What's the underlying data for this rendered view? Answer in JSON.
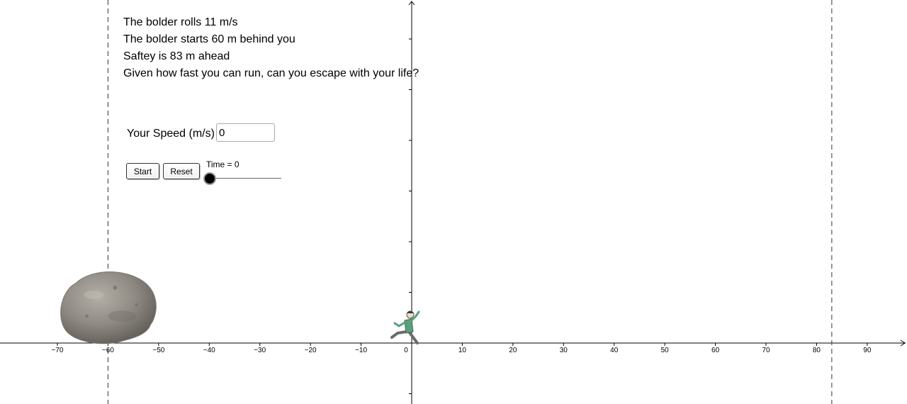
{
  "problem": {
    "lines": [
      "The bolder rolls 11 m/s",
      "The bolder starts 60 m behind you",
      "Saftey is 83 m ahead",
      "Given how fast you can run, can you escape with your life?"
    ]
  },
  "controls": {
    "speed_label": "Your Speed (m/s)",
    "speed_value": "0",
    "start_label": "Start",
    "reset_label": "Reset",
    "time_label": "Time = 0",
    "time_value": 0
  },
  "graph": {
    "x_tick_labels": [
      "−70",
      "−60",
      "−50",
      "−40",
      "−30",
      "−20",
      "−10",
      "0",
      "10",
      "20",
      "30",
      "40",
      "50",
      "60",
      "70",
      "80",
      "90"
    ],
    "x_tick_values": [
      -70,
      -60,
      -50,
      -40,
      -30,
      -20,
      -10,
      0,
      10,
      20,
      30,
      40,
      50,
      60,
      70,
      80,
      90
    ],
    "boulder_start_line_x": -60,
    "safety_line_x": 83,
    "boulder_position_x": -60,
    "runner_position_x": 0,
    "colors": {
      "axis": "#000000",
      "dash_line": "#333333",
      "boulder": "#8f8a83",
      "runner_shirt": "#5aa07a"
    },
    "icons": {
      "boulder": "boulder-image",
      "runner": "running-man-image"
    }
  }
}
